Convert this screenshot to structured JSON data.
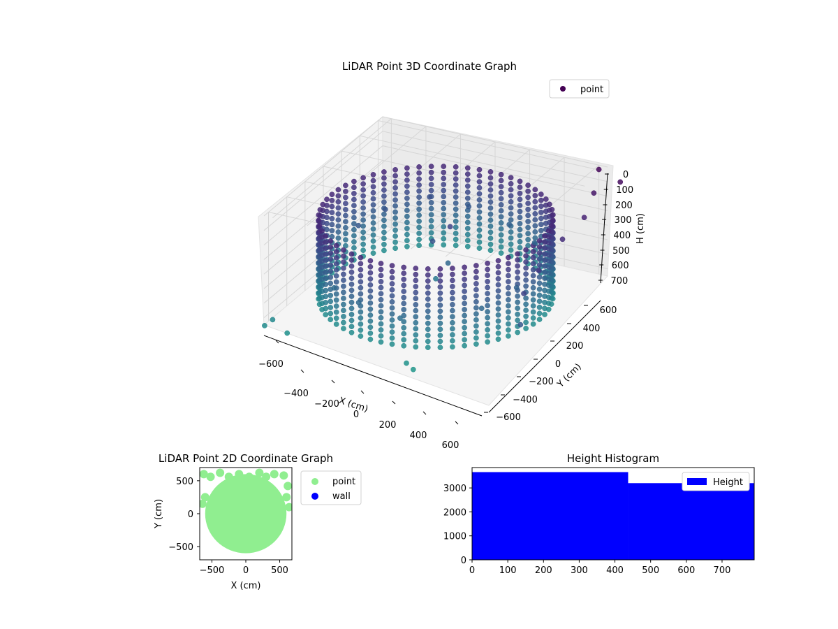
{
  "chart_data": [
    {
      "type": "scatter3d",
      "title": "LiDAR Point 3D Coordinate Graph",
      "xlabel": "X (cm)",
      "ylabel": "Y (cm)",
      "zlabel": "H (cm)",
      "xticks": [
        "−600",
        "−400",
        "−200",
        "0",
        "200",
        "400",
        "600"
      ],
      "yticks": [
        "−600",
        "−400",
        "−200",
        "0",
        "200",
        "400",
        "600"
      ],
      "zticks": [
        "0",
        "100",
        "200",
        "300",
        "400",
        "500",
        "600",
        "700"
      ],
      "xlim": [
        -650,
        650
      ],
      "ylim": [
        -650,
        650
      ],
      "zlim": [
        0,
        750
      ],
      "z_inverted": true,
      "grid": true,
      "legend": {
        "position": "top-right",
        "entries": [
          "point"
        ]
      },
      "series": [
        {
          "name": "point",
          "colormap": "viridis",
          "structure": {
            "wall_radius": 600,
            "wall_height_range": [
              180,
              720
            ],
            "rows": 14,
            "columns": 60
          },
          "points": [
            [
              -300,
              500,
              380
            ],
            [
              -100,
              550,
              420
            ],
            [
              150,
              520,
              460
            ],
            [
              350,
              420,
              480
            ],
            [
              -450,
              300,
              400
            ],
            [
              -500,
              100,
              420
            ],
            [
              500,
              200,
              430
            ],
            [
              520,
              -100,
              470
            ],
            [
              450,
              -350,
              500
            ],
            [
              -350,
              -450,
              520
            ],
            [
              100,
              -580,
              540
            ],
            [
              -150,
              -560,
              510
            ],
            [
              0,
              0,
              600
            ],
            [
              50,
              40,
              500
            ],
            [
              -60,
              80,
              400
            ],
            [
              20,
              120,
              300
            ],
            [
              650,
              500,
              100
            ],
            [
              700,
              300,
              150
            ],
            [
              680,
              100,
              200
            ],
            [
              700,
              -200,
              250
            ],
            [
              750,
              600,
              50
            ],
            [
              600,
              650,
              30
            ],
            [
              720,
              -400,
              300
            ],
            [
              780,
              -550,
              420
            ],
            [
              -600,
              -650,
              700
            ],
            [
              -620,
              -700,
              720
            ],
            [
              -500,
              -680,
              750
            ],
            [
              200,
              -700,
              760
            ],
            [
              250,
              -720,
              780
            ]
          ]
        }
      ]
    },
    {
      "type": "scatter",
      "title": "LiDAR Point 2D Coordinate Graph",
      "xlabel": "X (cm)",
      "ylabel": "Y (cm)",
      "xticks": [
        "−500",
        "0",
        "500"
      ],
      "yticks": [
        "−500",
        "0",
        "500"
      ],
      "xlim": [
        -680,
        680
      ],
      "ylim": [
        -700,
        700
      ],
      "grid": false,
      "legend": {
        "position": "outside-right",
        "entries": [
          "point",
          "wall"
        ]
      },
      "series": [
        {
          "name": "point",
          "color": "#90ee90",
          "shape": "disc",
          "radius": 600
        },
        {
          "name": "wall",
          "color": "#0000ff",
          "points": []
        }
      ]
    },
    {
      "type": "bar",
      "title": "Height Histogram",
      "xticks": [
        "0",
        "100",
        "200",
        "300",
        "400",
        "500",
        "600",
        "700"
      ],
      "yticks": [
        "0",
        "1000",
        "2000",
        "3000"
      ],
      "xlim": [
        0,
        790
      ],
      "ylim": [
        0,
        3850
      ],
      "grid": false,
      "color": "#0000ff",
      "legend": {
        "position": "top-right",
        "entries": [
          "Height"
        ]
      },
      "series": [
        {
          "name": "Height",
          "bins": [
            {
              "x0": 0,
              "x1": 437,
              "count": 3660
            },
            {
              "x0": 437,
              "x1": 790,
              "count": 3200
            }
          ]
        }
      ]
    }
  ]
}
